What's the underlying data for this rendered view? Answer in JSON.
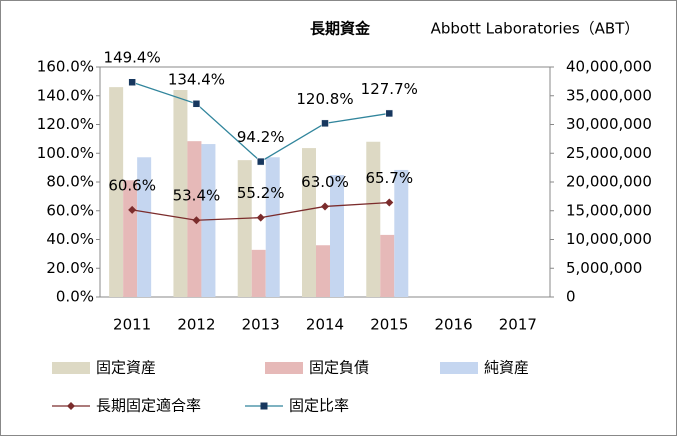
{
  "chart_data": {
    "type": "bar",
    "title": "長期資金",
    "subtitle": "Abbott Laboratories（ABT）",
    "categories": [
      "2011",
      "2012",
      "2013",
      "2014",
      "2015",
      "2016",
      "2017"
    ],
    "series": [
      {
        "name": "固定資産",
        "color": "#ddd9c4",
        "axis": "y2",
        "values": [
          36500000,
          36000000,
          23800000,
          25900000,
          27000000,
          null,
          null
        ]
      },
      {
        "name": "固定負債",
        "color": "#e6b9b8",
        "axis": "y2",
        "values": [
          20300000,
          27100000,
          8200000,
          9000000,
          10800000,
          null,
          null
        ]
      },
      {
        "name": "純資産",
        "color": "#c5d6f0",
        "axis": "y2",
        "values": [
          24300000,
          26600000,
          24300000,
          21200000,
          22100000,
          null,
          null
        ]
      },
      {
        "name": "長期固定適合率",
        "type": "line",
        "color": "#7b2c2c",
        "marker": "diamond",
        "marker_color": "#7b2c2c",
        "values": [
          60.6,
          53.4,
          55.2,
          63.0,
          65.7,
          null,
          null
        ],
        "value_labels": [
          "60.6%",
          "53.4%",
          "55.2%",
          "63.0%",
          "65.7%",
          null,
          null
        ]
      },
      {
        "name": "固定比率",
        "type": "line",
        "color": "#31859c",
        "marker": "square",
        "marker_color": "#17375e",
        "values": [
          149.4,
          134.4,
          94.2,
          120.8,
          127.7,
          null,
          null
        ],
        "value_labels": [
          "149.4%",
          "134.4%",
          "94.2%",
          "120.8%",
          "127.7%",
          null,
          null
        ]
      }
    ],
    "ylim": [
      0,
      160
    ],
    "yticks": [
      {
        "value": 0,
        "label": "0.0%"
      },
      {
        "value": 20,
        "label": "20.0%"
      },
      {
        "value": 40,
        "label": "40.0%"
      },
      {
        "value": 60,
        "label": "60.0%"
      },
      {
        "value": 80,
        "label": "80.0%"
      },
      {
        "value": 100,
        "label": "100.0%"
      },
      {
        "value": 120,
        "label": "120.0%"
      },
      {
        "value": 140,
        "label": "140.0%"
      },
      {
        "value": 160,
        "label": "160.0%"
      }
    ],
    "y2lim": [
      0,
      40000000
    ],
    "y2ticks": [
      0,
      {
        "value": 5000000,
        "label": "5,000,000"
      },
      {
        "value": 10000000,
        "label": "10,000,000"
      },
      {
        "value": 15000000,
        "label": "15,000,000"
      },
      {
        "value": 20000000,
        "label": "20,000,000"
      },
      {
        "value": 25000000,
        "label": "25,000,000"
      },
      {
        "value": 30000000,
        "label": "30,000,000"
      },
      {
        "value": 35000000,
        "label": "35,000,000"
      },
      {
        "value": 40000000,
        "label": "40,000,000"
      }
    ],
    "grid": false
  }
}
